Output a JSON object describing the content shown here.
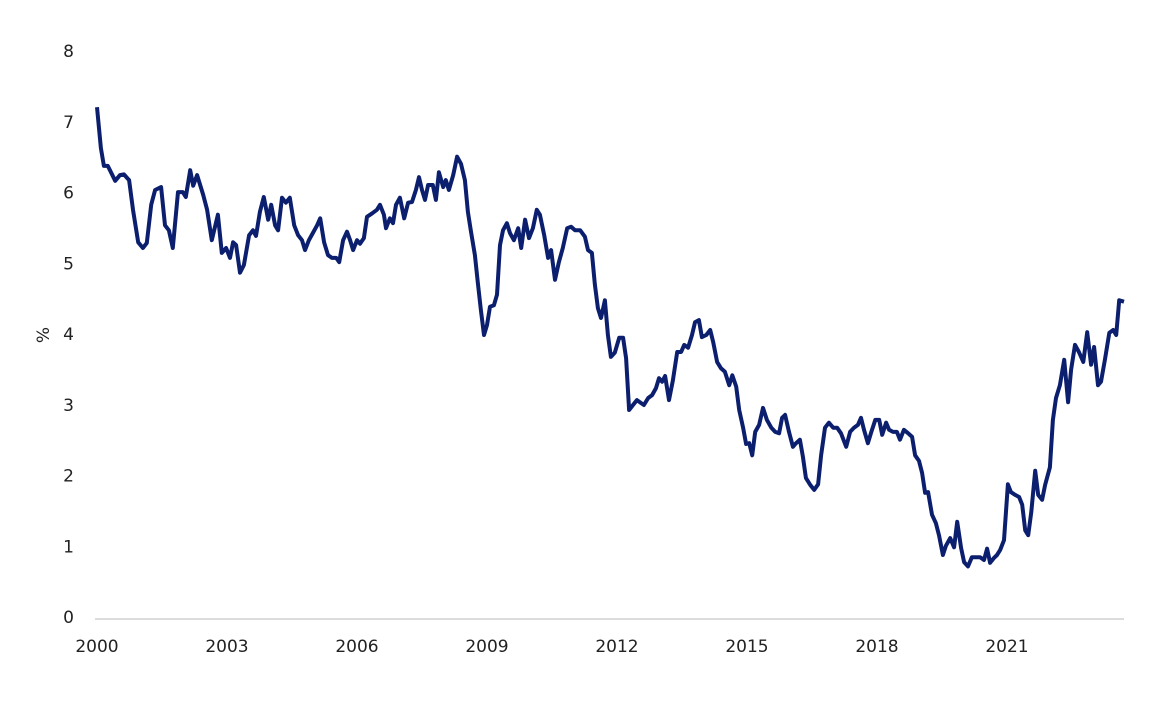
{
  "chart_data": {
    "type": "line",
    "y_label": "%",
    "x": [
      2000.0,
      2000.09,
      2000.16,
      2000.25,
      2000.42,
      2000.53,
      2000.62,
      2000.74,
      2000.83,
      2000.95,
      2001.06,
      2001.15,
      2001.25,
      2001.34,
      2001.48,
      2001.57,
      2001.66,
      2001.75,
      2001.87,
      2001.98,
      2002.05,
      2002.15,
      2002.22,
      2002.31,
      2002.45,
      2002.54,
      2002.65,
      2002.79,
      2002.88,
      2002.98,
      2003.07,
      2003.14,
      2003.21,
      2003.3,
      2003.39,
      2003.51,
      2003.6,
      2003.67,
      2003.76,
      2003.85,
      2003.95,
      2004.02,
      2004.11,
      2004.18,
      2004.27,
      2004.36,
      2004.45,
      2004.55,
      2004.64,
      2004.73,
      2004.8,
      2004.89,
      2004.98,
      2005.08,
      2005.15,
      2005.24,
      2005.33,
      2005.42,
      2005.52,
      2005.59,
      2005.68,
      2005.77,
      2005.84,
      2005.91,
      2006.0,
      2006.07,
      2006.16,
      2006.23,
      2006.35,
      2006.46,
      2006.53,
      2006.62,
      2006.67,
      2006.76,
      2006.83,
      2006.9,
      2006.99,
      2007.09,
      2007.18,
      2007.27,
      2007.36,
      2007.43,
      2007.5,
      2007.57,
      2007.64,
      2007.75,
      2007.82,
      2007.89,
      2007.99,
      2008.05,
      2008.12,
      2008.22,
      2008.31,
      2008.4,
      2008.49,
      2008.56,
      2008.63,
      2008.72,
      2008.79,
      2008.86,
      2008.93,
      2009.0,
      2009.07,
      2009.16,
      2009.23,
      2009.3,
      2009.37,
      2009.46,
      2009.53,
      2009.62,
      2009.72,
      2009.79,
      2009.88,
      2009.97,
      2010.06,
      2010.15,
      2010.22,
      2010.32,
      2010.41,
      2010.48,
      2010.57,
      2010.66,
      2010.75,
      2010.85,
      2010.94,
      2011.03,
      2011.15,
      2011.26,
      2011.33,
      2011.42,
      2011.49,
      2011.56,
      2011.63,
      2011.72,
      2011.79,
      2011.86,
      2011.95,
      2012.05,
      2012.14,
      2012.21,
      2012.28,
      2012.37,
      2012.46,
      2012.55,
      2012.62,
      2012.72,
      2012.81,
      2012.9,
      2012.97,
      2013.04,
      2013.11,
      2013.2,
      2013.29,
      2013.39,
      2013.48,
      2013.55,
      2013.64,
      2013.73,
      2013.8,
      2013.89,
      2013.96,
      2014.06,
      2014.15,
      2014.22,
      2014.31,
      2014.4,
      2014.49,
      2014.59,
      2014.66,
      2014.75,
      2014.82,
      2014.91,
      2014.98,
      2015.05,
      2015.12,
      2015.19,
      2015.28,
      2015.37,
      2015.46,
      2015.56,
      2015.65,
      2015.74,
      2015.81,
      2015.88,
      2015.97,
      2016.06,
      2016.13,
      2016.22,
      2016.29,
      2016.36,
      2016.46,
      2016.55,
      2016.64,
      2016.71,
      2016.8,
      2016.89,
      2016.99,
      2017.08,
      2017.17,
      2017.29,
      2017.38,
      2017.47,
      2017.56,
      2017.63,
      2017.7,
      2017.79,
      2017.86,
      2017.96,
      2018.05,
      2018.12,
      2018.21,
      2018.28,
      2018.37,
      2018.46,
      2018.53,
      2018.62,
      2018.72,
      2018.81,
      2018.88,
      2018.97,
      2019.04,
      2019.11,
      2019.18,
      2019.27,
      2019.36,
      2019.43,
      2019.52,
      2019.59,
      2019.69,
      2019.78,
      2019.85,
      2019.94,
      2020.01,
      2020.1,
      2020.19,
      2020.29,
      2020.38,
      2020.47,
      2020.54,
      2020.61,
      2020.7,
      2020.77,
      2020.84,
      2020.93,
      2021.02,
      2021.09,
      2021.19,
      2021.28,
      2021.35,
      2021.42,
      2021.49,
      2021.56,
      2021.65,
      2021.72,
      2021.81,
      2021.88,
      2021.99,
      2022.06,
      2022.13,
      2022.22,
      2022.32,
      2022.41,
      2022.48,
      2022.57,
      2022.66,
      2022.76,
      2022.85,
      2022.94,
      2023.01,
      2023.1,
      2023.17,
      2023.26,
      2023.36,
      2023.45,
      2023.52,
      2023.59,
      2023.7
    ],
    "values": [
      7.22,
      6.64,
      6.39,
      6.39,
      6.18,
      6.26,
      6.27,
      6.19,
      5.77,
      5.31,
      5.23,
      5.3,
      5.84,
      6.05,
      6.09,
      5.55,
      5.48,
      5.23,
      6.02,
      6.02,
      5.95,
      6.33,
      6.11,
      6.26,
      5.98,
      5.77,
      5.34,
      5.7,
      5.16,
      5.23,
      5.09,
      5.31,
      5.27,
      4.88,
      4.99,
      5.41,
      5.48,
      5.4,
      5.74,
      5.95,
      5.63,
      5.84,
      5.55,
      5.48,
      5.94,
      5.87,
      5.94,
      5.55,
      5.41,
      5.34,
      5.2,
      5.34,
      5.44,
      5.55,
      5.65,
      5.31,
      5.13,
      5.09,
      5.09,
      5.03,
      5.34,
      5.46,
      5.34,
      5.2,
      5.34,
      5.29,
      5.37,
      5.67,
      5.72,
      5.77,
      5.84,
      5.7,
      5.51,
      5.65,
      5.58,
      5.84,
      5.94,
      5.65,
      5.87,
      5.88,
      6.05,
      6.23,
      6.05,
      5.91,
      6.12,
      6.12,
      5.91,
      6.3,
      6.09,
      6.19,
      6.05,
      6.26,
      6.52,
      6.42,
      6.19,
      5.74,
      5.46,
      5.13,
      4.73,
      4.35,
      4.0,
      4.14,
      4.4,
      4.42,
      4.57,
      5.27,
      5.48,
      5.58,
      5.44,
      5.34,
      5.51,
      5.23,
      5.63,
      5.37,
      5.51,
      5.77,
      5.7,
      5.41,
      5.09,
      5.2,
      4.78,
      5.03,
      5.23,
      5.51,
      5.53,
      5.48,
      5.48,
      5.39,
      5.2,
      5.16,
      4.71,
      4.38,
      4.24,
      4.49,
      4.0,
      3.69,
      3.75,
      3.96,
      3.96,
      3.67,
      2.94,
      3.01,
      3.08,
      3.04,
      3.01,
      3.11,
      3.15,
      3.25,
      3.39,
      3.34,
      3.42,
      3.08,
      3.36,
      3.76,
      3.76,
      3.86,
      3.82,
      4.0,
      4.18,
      4.21,
      3.97,
      4.0,
      4.07,
      3.9,
      3.62,
      3.53,
      3.48,
      3.29,
      3.43,
      3.27,
      2.94,
      2.69,
      2.46,
      2.47,
      2.3,
      2.63,
      2.73,
      2.97,
      2.8,
      2.69,
      2.63,
      2.61,
      2.83,
      2.87,
      2.63,
      2.42,
      2.47,
      2.52,
      2.28,
      1.98,
      1.88,
      1.81,
      1.89,
      2.3,
      2.69,
      2.76,
      2.69,
      2.69,
      2.61,
      2.42,
      2.63,
      2.69,
      2.73,
      2.83,
      2.66,
      2.47,
      2.61,
      2.8,
      2.8,
      2.59,
      2.76,
      2.66,
      2.63,
      2.63,
      2.52,
      2.66,
      2.61,
      2.56,
      2.3,
      2.22,
      2.05,
      1.77,
      1.78,
      1.46,
      1.34,
      1.17,
      0.89,
      1.02,
      1.13,
      1.0,
      1.36,
      0.99,
      0.79,
      0.73,
      0.86,
      0.86,
      0.86,
      0.82,
      0.98,
      0.78,
      0.85,
      0.89,
      0.96,
      1.1,
      1.89,
      1.78,
      1.74,
      1.71,
      1.6,
      1.24,
      1.17,
      1.5,
      2.08,
      1.74,
      1.67,
      1.88,
      2.13,
      2.8,
      3.11,
      3.29,
      3.65,
      3.05,
      3.51,
      3.86,
      3.76,
      3.62,
      4.04,
      3.58,
      3.83,
      3.29,
      3.34,
      3.65,
      4.03,
      4.07,
      4.0,
      4.49,
      4.47
    ],
    "color": "#0b1f6e",
    "xlim": [
      2000,
      2023.7
    ],
    "xticks": [
      2000,
      2003,
      2006,
      2009,
      2012,
      2015,
      2018,
      2021
    ],
    "ylim": [
      0,
      8
    ],
    "yticks": [
      0,
      1,
      2,
      3,
      4,
      5,
      6,
      7,
      8
    ],
    "grid": false
  }
}
